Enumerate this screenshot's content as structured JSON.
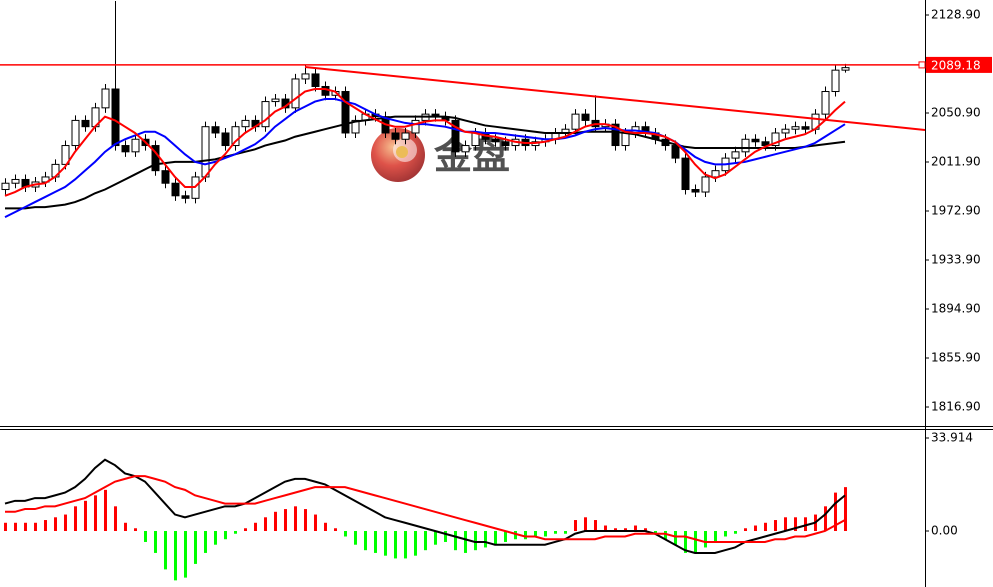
{
  "chart_data": [
    {
      "type": "candlestick",
      "open": [
        1990,
        1995,
        1998,
        1992,
        1996,
        2000,
        2010,
        2025,
        2045,
        2040,
        2055,
        2070,
        2025,
        2020,
        2030,
        2025,
        2005,
        1995,
        1985,
        1983,
        2000,
        2040,
        2035,
        2025,
        2040,
        2045,
        2040,
        2060,
        2062,
        2055,
        2078,
        2082,
        2072,
        2065,
        2068,
        2035,
        2045,
        2050,
        2048,
        2035,
        2030,
        2035,
        2045,
        2050,
        2048,
        2045,
        2020,
        2025,
        2035,
        2030,
        2028,
        2025,
        2030,
        2025,
        2028,
        2030,
        2035,
        2038,
        2050,
        2045,
        2040,
        2042,
        2025,
        2035,
        2040,
        2035,
        2030,
        2025,
        2015,
        1990,
        1988,
        2000,
        2005,
        2015,
        2020,
        2030,
        2028,
        2025,
        2035,
        2038,
        2040,
        2038,
        2050,
        2068,
        2085
      ],
      "high": [
        1999,
        2002,
        2002,
        2000,
        2004,
        2014,
        2029,
        2049,
        2049,
        2059,
        2074,
        2140,
        2029,
        2034,
        2034,
        2029,
        2009,
        1999,
        1989,
        2004,
        2044,
        2044,
        2039,
        2044,
        2049,
        2049,
        2064,
        2066,
        2066,
        2082,
        2089,
        2086,
        2076,
        2072,
        2072,
        2049,
        2054,
        2054,
        2052,
        2039,
        2039,
        2049,
        2054,
        2054,
        2052,
        2049,
        2029,
        2039,
        2039,
        2034,
        2032,
        2034,
        2034,
        2032,
        2034,
        2039,
        2042,
        2054,
        2054,
        2065,
        2046,
        2046,
        2039,
        2044,
        2044,
        2039,
        2034,
        2029,
        2019,
        1994,
        2004,
        2009,
        2019,
        2024,
        2034,
        2034,
        2032,
        2039,
        2042,
        2044,
        2044,
        2054,
        2072,
        2089,
        2090
      ],
      "low": [
        1986,
        1991,
        1988,
        1988,
        1992,
        1996,
        2006,
        2021,
        2036,
        2036,
        2051,
        2021,
        2016,
        2016,
        2021,
        2001,
        1991,
        1981,
        1979,
        1979,
        1996,
        2031,
        2021,
        2021,
        2036,
        2036,
        2036,
        2056,
        2051,
        2051,
        2074,
        2068,
        2061,
        2061,
        2031,
        2031,
        2041,
        2044,
        2031,
        2026,
        2026,
        2031,
        2041,
        2044,
        2041,
        2016,
        2016,
        2021,
        2026,
        2024,
        2021,
        2021,
        2021,
        2021,
        2024,
        2026,
        2031,
        2034,
        2041,
        2036,
        2036,
        2021,
        2021,
        2031,
        2031,
        2026,
        2021,
        2011,
        1986,
        1984,
        1984,
        1996,
        2001,
        2011,
        2016,
        2024,
        2021,
        2021,
        2031,
        2034,
        2034,
        2034,
        2046,
        2064,
        2083
      ],
      "close": [
        1995,
        1998,
        1992,
        1996,
        2000,
        2010,
        2025,
        2045,
        2040,
        2055,
        2070,
        2025,
        2020,
        2030,
        2025,
        2005,
        1995,
        1985,
        1983,
        2000,
        2040,
        2035,
        2025,
        2040,
        2045,
        2040,
        2060,
        2062,
        2055,
        2078,
        2082,
        2072,
        2065,
        2068,
        2035,
        2045,
        2050,
        2048,
        2035,
        2030,
        2035,
        2045,
        2050,
        2048,
        2045,
        2020,
        2025,
        2035,
        2030,
        2028,
        2025,
        2030,
        2025,
        2028,
        2030,
        2035,
        2038,
        2050,
        2045,
        2040,
        2042,
        2025,
        2035,
        2040,
        2035,
        2030,
        2025,
        2015,
        1990,
        1988,
        2000,
        2005,
        2015,
        2020,
        2030,
        2028,
        2025,
        2035,
        2038,
        2040,
        2038,
        2050,
        2068,
        2085,
        2087
      ],
      "up_color": "#ffffff",
      "down_color": "#000000",
      "series": [
        {
          "color": "#000000",
          "values": [
            1975,
            1975,
            1975,
            1976,
            1976,
            1977,
            1978,
            1980,
            1983,
            1987,
            1990,
            1994,
            1998,
            2002,
            2006,
            2010,
            2011,
            2012,
            2012,
            2012,
            2013,
            2014,
            2016,
            2018,
            2020,
            2022,
            2025,
            2027,
            2029,
            2032,
            2034,
            2036,
            2038,
            2040,
            2042,
            2044,
            2045,
            2046,
            2047,
            2048,
            2048,
            2048,
            2048,
            2048,
            2048,
            2047,
            2045,
            2043,
            2041,
            2040,
            2039,
            2038,
            2037,
            2036,
            2035,
            2035,
            2035,
            2035,
            2036,
            2036,
            2036,
            2036,
            2035,
            2034,
            2032,
            2030,
            2028,
            2026,
            2024,
            2023,
            2023,
            2023,
            2023,
            2023,
            2023,
            2023,
            2023,
            2023,
            2023,
            2023,
            2024,
            2025,
            2026,
            2027,
            2028
          ]
        },
        {
          "color": "#0000ff",
          "values": [
            1968,
            1972,
            1976,
            1980,
            1984,
            1988,
            1992,
            1998,
            2005,
            2012,
            2020,
            2026,
            2030,
            2033,
            2036,
            2036,
            2032,
            2025,
            2018,
            2012,
            2010,
            2012,
            2015,
            2018,
            2022,
            2026,
            2032,
            2040,
            2046,
            2052,
            2056,
            2060,
            2062,
            2062,
            2060,
            2058,
            2054,
            2050,
            2047,
            2045,
            2043,
            2042,
            2042,
            2041,
            2040,
            2038,
            2036,
            2036,
            2035,
            2035,
            2034,
            2033,
            2032,
            2031,
            2030,
            2030,
            2031,
            2033,
            2036,
            2038,
            2039,
            2038,
            2037,
            2037,
            2036,
            2035,
            2032,
            2028,
            2022,
            2016,
            2012,
            2010,
            2010,
            2011,
            2012,
            2014,
            2016,
            2018,
            2020,
            2022,
            2024,
            2027,
            2032,
            2037,
            2042
          ]
        },
        {
          "color": "#ff0000",
          "values": [
            1985,
            1988,
            1992,
            1994,
            1995,
            2000,
            2008,
            2020,
            2030,
            2040,
            2048,
            2045,
            2040,
            2035,
            2028,
            2020,
            2010,
            2000,
            1992,
            1992,
            2000,
            2010,
            2018,
            2028,
            2035,
            2040,
            2045,
            2052,
            2056,
            2062,
            2068,
            2070,
            2070,
            2068,
            2060,
            2055,
            2050,
            2046,
            2042,
            2040,
            2040,
            2042,
            2044,
            2045,
            2045,
            2040,
            2036,
            2035,
            2033,
            2032,
            2030,
            2028,
            2027,
            2027,
            2028,
            2030,
            2032,
            2036,
            2040,
            2042,
            2042,
            2040,
            2036,
            2035,
            2035,
            2034,
            2032,
            2028,
            2020,
            2010,
            2002,
            1999,
            2002,
            2008,
            2014,
            2020,
            2024,
            2027,
            2030,
            2032,
            2034,
            2038,
            2045,
            2053,
            2060
          ]
        }
      ],
      "trend_line": {
        "x": [
          30,
          92
        ],
        "values": [
          2087.5,
          2037.4
        ],
        "color": "#ff0000"
      },
      "price_line": {
        "value": 2089.18,
        "color": "#ff0000"
      },
      "watermark": "金盘",
      "ylim": [
        1802.57,
        2140.84
      ],
      "yticks": [
        {
          "value": 1816.9,
          "label": "1816.90"
        },
        {
          "value": 1855.9,
          "label": "1855.90"
        },
        {
          "value": 1894.9,
          "label": "1894.90"
        },
        {
          "value": 1933.9,
          "label": "1933.90"
        },
        {
          "value": 1972.9,
          "label": "1972.90"
        },
        {
          "value": 2011.9,
          "label": "2011.90"
        },
        {
          "value": 2050.9,
          "label": "2050.90"
        },
        {
          "value": 2128.9,
          "label": "2128.90"
        }
      ]
    },
    {
      "type": "macd",
      "histogram": {
        "up_color": "#ff0000",
        "down_color": "#00ff00",
        "values": [
          3,
          3,
          3,
          3,
          4,
          5,
          6,
          9,
          11,
          13,
          15,
          9,
          3,
          1,
          -4,
          -8,
          -14,
          -18,
          -17,
          -12,
          -8,
          -5,
          -3,
          -1,
          1,
          3,
          5,
          7,
          8,
          9,
          8,
          6,
          3,
          1,
          -2,
          -5,
          -7,
          -8,
          -9,
          -10,
          -10,
          -9,
          -7,
          -5,
          -4,
          -7,
          -8,
          -7,
          -6,
          -5,
          -4,
          -3,
          -3,
          -2,
          -2,
          -1,
          -1,
          4,
          5,
          4,
          2,
          1,
          1,
          2,
          1,
          -1,
          -3,
          -5,
          -8,
          -8,
          -6,
          -4,
          -2,
          -1,
          1,
          2,
          3,
          4,
          5,
          5,
          5,
          6,
          9,
          14,
          16
        ]
      },
      "series": [
        {
          "color": "#000000",
          "values": [
            10,
            11,
            11,
            12,
            12,
            13,
            14,
            16,
            19,
            23,
            26,
            24,
            21,
            20,
            18,
            14,
            10,
            6,
            5,
            6,
            7,
            8,
            9,
            9,
            10,
            12,
            14,
            16,
            18,
            19,
            19,
            18,
            17,
            15,
            13,
            11,
            9,
            7,
            5,
            4,
            3,
            2,
            1,
            0,
            -1,
            -2,
            -3,
            -4,
            -4,
            -5,
            -5,
            -5,
            -5,
            -5,
            -5,
            -4,
            -3,
            -1,
            0,
            0,
            0,
            0,
            0,
            0,
            0,
            -1,
            -3,
            -5,
            -7,
            -8,
            -8,
            -8,
            -7,
            -6,
            -4,
            -3,
            -2,
            -1,
            0,
            1,
            2,
            3,
            6,
            10,
            13
          ]
        },
        {
          "color": "#ff0000",
          "values": [
            7,
            7,
            8,
            8,
            9,
            9,
            10,
            11,
            12,
            14,
            16,
            18,
            19,
            20,
            20,
            19,
            18,
            16,
            15,
            13,
            12,
            11,
            10,
            10,
            10,
            10,
            11,
            12,
            13,
            14,
            15,
            16,
            16,
            16,
            16,
            15,
            14,
            13,
            12,
            11,
            10,
            9,
            8,
            7,
            6,
            5,
            4,
            3,
            2,
            1,
            0,
            -1,
            -2,
            -2,
            -3,
            -3,
            -3,
            -3,
            -3,
            -3,
            -2,
            -2,
            -2,
            -1,
            -1,
            -1,
            -1,
            -2,
            -2,
            -3,
            -4,
            -4,
            -4,
            -4,
            -4,
            -4,
            -4,
            -3,
            -3,
            -2,
            -2,
            -1,
            0,
            2,
            4
          ]
        }
      ],
      "ylim": [
        -20.42,
        36.83
      ],
      "yticks": [
        {
          "value": 0,
          "label": "0.00"
        },
        33.914
      ]
    }
  ]
}
